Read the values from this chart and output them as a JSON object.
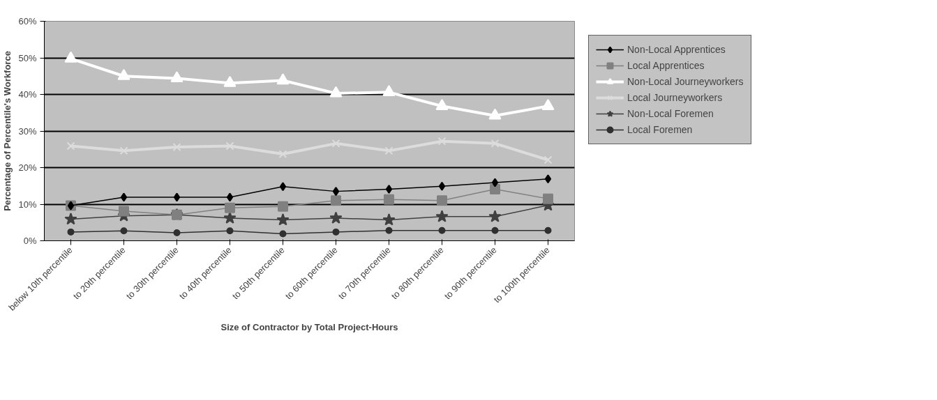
{
  "chart_data": {
    "type": "line",
    "xlabel": "Size of Contractor by Total Project-Hours",
    "ylabel": "Percentage of Percentile's Workforce",
    "categories": [
      "below 10th percentile",
      "to 20th percentile",
      "to 30th percentile",
      "to 40th percentile",
      "to 50th percentile",
      "to 60th percentile",
      "to 70th percentile",
      "to 80th percentile",
      "to 90th percentile",
      "to 100th percentile"
    ],
    "ylim": [
      0,
      60
    ],
    "yticks": [
      {
        "value": 0,
        "label": "0%"
      },
      {
        "value": 10,
        "label": "10%"
      },
      {
        "value": 20,
        "label": "20%"
      },
      {
        "value": 30,
        "label": "30%"
      },
      {
        "value": 40,
        "label": "40%"
      },
      {
        "value": 50,
        "label": "50%"
      },
      {
        "value": 60,
        "label": "60%"
      }
    ],
    "grid": "y",
    "legend": "right",
    "series": [
      {
        "name": "Non-Local Apprentices",
        "color": "#000000",
        "marker": "diamond",
        "values": [
          9.6,
          11.9,
          11.9,
          11.9,
          14.8,
          13.5,
          14.1,
          14.9,
          15.9,
          16.9
        ]
      },
      {
        "name": "Local Apprentices",
        "color": "#808080",
        "marker": "square",
        "values": [
          9.6,
          8.1,
          7.1,
          9.0,
          9.4,
          11.0,
          11.3,
          11.0,
          14.1,
          11.5
        ]
      },
      {
        "name": "Non-Local Journeyworkers",
        "color": "#ffffff",
        "marker": "triangle",
        "values": [
          49.8,
          45.0,
          44.4,
          43.1,
          43.8,
          40.3,
          40.6,
          36.8,
          34.2,
          36.8
        ]
      },
      {
        "name": "Local Journeyworkers",
        "color": "#dcdcdc",
        "marker": "cross",
        "values": [
          25.9,
          24.6,
          25.6,
          25.9,
          23.7,
          26.6,
          24.6,
          27.2,
          26.6,
          22.1
        ]
      },
      {
        "name": "Non-Local Foremen",
        "color": "#404040",
        "marker": "star",
        "values": [
          5.9,
          6.8,
          7.1,
          6.2,
          5.7,
          6.2,
          5.7,
          6.6,
          6.6,
          9.7
        ]
      },
      {
        "name": "Local Foremen",
        "color": "#303030",
        "marker": "circle",
        "values": [
          2.4,
          2.7,
          2.2,
          2.7,
          1.9,
          2.4,
          2.8,
          2.8,
          2.8,
          2.8
        ]
      }
    ]
  }
}
